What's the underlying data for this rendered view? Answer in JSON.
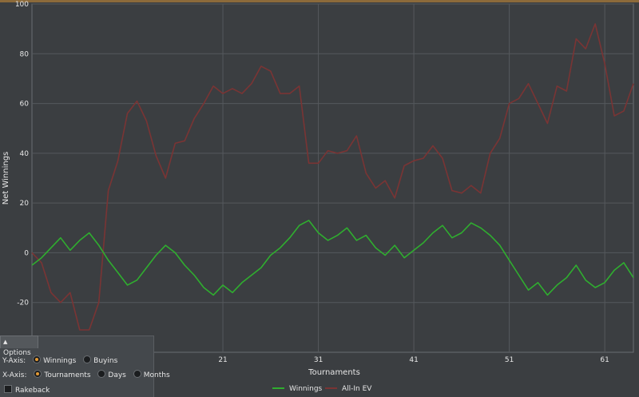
{
  "colors": {
    "background": "#3b3e41",
    "grid": "#55595d",
    "axis_text": "#e6e6e6",
    "winnings": "#2fae2f",
    "allin_ev": "#7a3434"
  },
  "chart_data": {
    "type": "line",
    "title": "",
    "xlabel": "Tournaments",
    "ylabel": "Net Winnings",
    "xlim": [
      1,
      64
    ],
    "ylim": [
      -40,
      100
    ],
    "x_ticks": [
      21,
      31,
      41,
      51,
      61
    ],
    "y_ticks": [
      -20,
      0,
      20,
      40,
      60,
      80,
      100
    ],
    "grid": true,
    "legend_position": "bottom-center",
    "series": [
      {
        "name": "Winnings",
        "color": "#2fae2f",
        "x": [
          1,
          2,
          3,
          4,
          5,
          6,
          7,
          8,
          9,
          10,
          11,
          12,
          13,
          14,
          15,
          16,
          17,
          18,
          19,
          20,
          21,
          22,
          23,
          24,
          25,
          26,
          27,
          28,
          29,
          30,
          31,
          32,
          33,
          34,
          35,
          36,
          37,
          38,
          39,
          40,
          41,
          42,
          43,
          44,
          45,
          46,
          47,
          48,
          49,
          50,
          51,
          52,
          53,
          54,
          55,
          56,
          57,
          58,
          59,
          60,
          61,
          62,
          63,
          64
        ],
        "values": [
          -5,
          -2,
          2,
          6,
          1,
          5,
          8,
          3,
          -3,
          -8,
          -13,
          -11,
          -6,
          -1,
          3,
          0,
          -5,
          -9,
          -14,
          -17,
          -13,
          -16,
          -12,
          -9,
          -6,
          -1,
          2,
          6,
          11,
          13,
          8,
          5,
          7,
          10,
          5,
          7,
          2,
          -1,
          3,
          -2,
          1,
          4,
          8,
          11,
          6,
          8,
          12,
          10,
          7,
          3,
          -3,
          -9,
          -15,
          -12,
          -17,
          -13,
          -10,
          -5,
          -11,
          -14,
          -12,
          -7,
          -4,
          -10
        ]
      },
      {
        "name": "All-In EV",
        "color": "#7a3434",
        "x": [
          1,
          2,
          3,
          4,
          5,
          6,
          7,
          8,
          9,
          10,
          11,
          12,
          13,
          14,
          15,
          16,
          17,
          18,
          19,
          20,
          21,
          22,
          23,
          24,
          25,
          26,
          27,
          28,
          29,
          30,
          31,
          32,
          33,
          34,
          35,
          36,
          37,
          38,
          39,
          40,
          41,
          42,
          43,
          44,
          45,
          46,
          47,
          48,
          49,
          50,
          51,
          52,
          53,
          54,
          55,
          56,
          57,
          58,
          59,
          60,
          61,
          62,
          63,
          64
        ],
        "values": [
          0,
          -4,
          -16,
          -20,
          -16,
          -31,
          -31,
          -20,
          25,
          37,
          56,
          61,
          53,
          39,
          30,
          44,
          45,
          54,
          60,
          67,
          64,
          66,
          64,
          68,
          75,
          73,
          64,
          64,
          67,
          36,
          36,
          41,
          40,
          41,
          47,
          32,
          26,
          29,
          22,
          35,
          37,
          38,
          43,
          38,
          25,
          24,
          27,
          24,
          40,
          46,
          60,
          62,
          68,
          60,
          52,
          67,
          65,
          86,
          82,
          92,
          76,
          55,
          57,
          68
        ]
      }
    ]
  },
  "options": {
    "tab_label": "Options",
    "y_axis_label": "Y-Axis:",
    "y_axis_options": [
      {
        "label": "Winnings",
        "selected": true
      },
      {
        "label": "Buyins",
        "selected": false
      }
    ],
    "x_axis_label": "X-Axis:",
    "x_axis_options": [
      {
        "label": "Tournaments",
        "selected": true
      },
      {
        "label": "Days",
        "selected": false
      },
      {
        "label": "Months",
        "selected": false
      }
    ],
    "rakeback_label": "Rakeback"
  }
}
